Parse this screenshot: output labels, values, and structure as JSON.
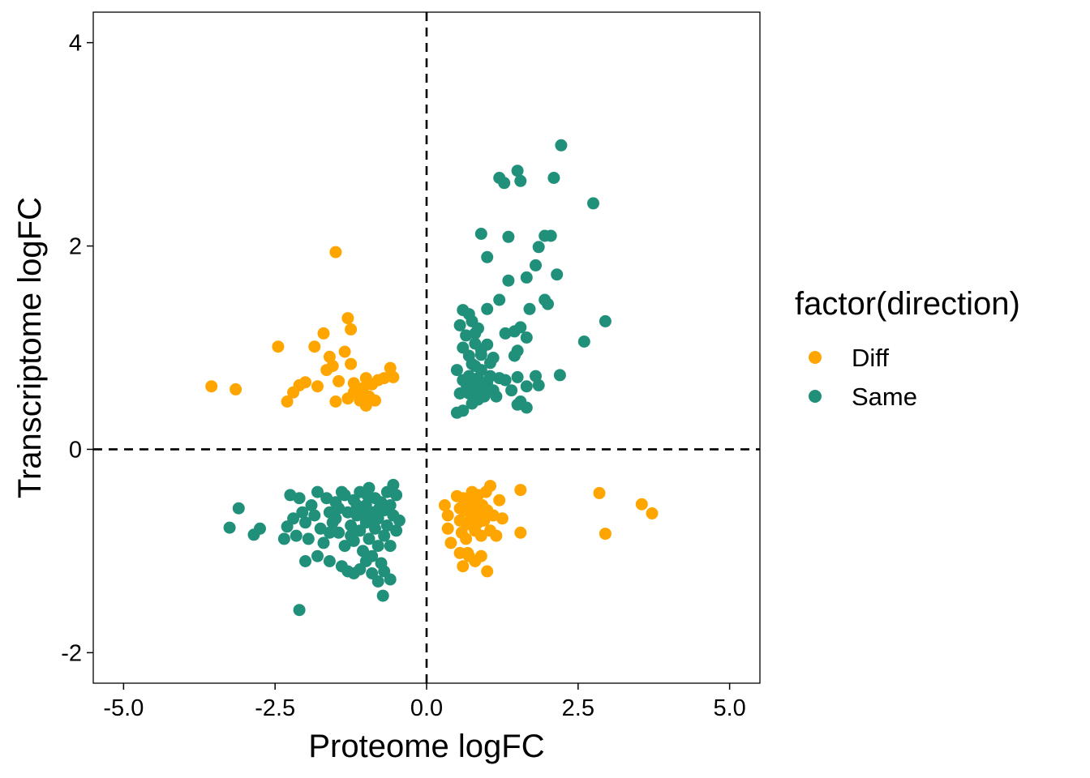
{
  "chart_data": {
    "type": "scatter",
    "title": "",
    "xlabel": "Proteome logFC",
    "ylabel": "Transcriptome logFC",
    "xlim": [
      -5.5,
      5.5
    ],
    "ylim": [
      -2.3,
      4.3
    ],
    "x_ticks": [
      {
        "value": -5.0,
        "label": "-5.0"
      },
      {
        "value": -2.5,
        "label": "-2.5"
      },
      {
        "value": 0.0,
        "label": "0.0"
      },
      {
        "value": 2.5,
        "label": "2.5"
      },
      {
        "value": 5.0,
        "label": "5.0"
      }
    ],
    "y_ticks": [
      {
        "value": -2,
        "label": "-2"
      },
      {
        "value": 0,
        "label": "0"
      },
      {
        "value": 2,
        "label": "2"
      },
      {
        "value": 4,
        "label": "4"
      }
    ],
    "reference_lines": {
      "x": 0,
      "y": 0,
      "style": "dashed"
    },
    "grid": false,
    "legend": {
      "title": "factor(direction)",
      "position": "right"
    },
    "series": [
      {
        "name": "Diff",
        "color": "#FFA500",
        "points": [
          [
            -1.5,
            1.94
          ],
          [
            -3.55,
            0.62
          ],
          [
            -3.15,
            0.59
          ],
          [
            -2.45,
            1.01
          ],
          [
            -2.3,
            0.47
          ],
          [
            -2.2,
            0.56
          ],
          [
            -2.1,
            0.63
          ],
          [
            -2.0,
            0.66
          ],
          [
            -1.85,
            1.01
          ],
          [
            -1.8,
            0.62
          ],
          [
            -1.7,
            1.14
          ],
          [
            -1.65,
            0.78
          ],
          [
            -1.6,
            0.91
          ],
          [
            -1.55,
            0.82
          ],
          [
            -1.5,
            0.47
          ],
          [
            -1.45,
            0.67
          ],
          [
            -1.35,
            0.96
          ],
          [
            -1.3,
            1.29
          ],
          [
            -1.25,
            1.18
          ],
          [
            -1.25,
            0.84
          ],
          [
            -1.2,
            0.65
          ],
          [
            -1.3,
            0.5
          ],
          [
            -1.15,
            0.58
          ],
          [
            -1.1,
            0.48
          ],
          [
            -1.05,
            0.6
          ],
          [
            -1.0,
            0.43
          ],
          [
            -1.0,
            0.7
          ],
          [
            -0.95,
            0.52
          ],
          [
            -0.9,
            0.64
          ],
          [
            -0.85,
            0.48
          ],
          [
            -0.8,
            0.68
          ],
          [
            -0.7,
            0.7
          ],
          [
            -0.6,
            0.8
          ],
          [
            -0.55,
            0.71
          ],
          [
            -1.2,
            0.56
          ],
          [
            -1.05,
            0.53
          ],
          [
            0.3,
            -0.55
          ],
          [
            0.35,
            -0.65
          ],
          [
            0.35,
            -0.78
          ],
          [
            0.4,
            -0.92
          ],
          [
            0.5,
            -0.46
          ],
          [
            0.55,
            -0.58
          ],
          [
            0.55,
            -0.7
          ],
          [
            0.58,
            -0.82
          ],
          [
            0.6,
            -0.48
          ],
          [
            0.62,
            -0.6
          ],
          [
            0.65,
            -0.72
          ],
          [
            0.65,
            -0.88
          ],
          [
            0.68,
            -1.02
          ],
          [
            0.7,
            -0.5
          ],
          [
            0.72,
            -0.62
          ],
          [
            0.72,
            -0.74
          ],
          [
            0.75,
            -0.55
          ],
          [
            0.75,
            -0.42
          ],
          [
            0.78,
            -0.68
          ],
          [
            0.8,
            -0.8
          ],
          [
            0.8,
            -0.6
          ],
          [
            0.82,
            -0.5
          ],
          [
            0.85,
            -0.72
          ],
          [
            0.85,
            -0.45
          ],
          [
            0.88,
            -0.62
          ],
          [
            0.9,
            -0.85
          ],
          [
            0.92,
            -0.55
          ],
          [
            0.95,
            -0.7
          ],
          [
            0.98,
            -0.42
          ],
          [
            1.0,
            -0.6
          ],
          [
            1.05,
            -0.36
          ],
          [
            1.05,
            -0.8
          ],
          [
            1.1,
            -0.65
          ],
          [
            0.6,
            -1.15
          ],
          [
            0.7,
            -1.05
          ],
          [
            0.8,
            -1.1
          ],
          [
            0.9,
            -1.05
          ],
          [
            1.0,
            -1.2
          ],
          [
            0.55,
            -1.02
          ],
          [
            1.15,
            -0.85
          ],
          [
            1.2,
            -0.5
          ],
          [
            1.25,
            -0.68
          ],
          [
            1.55,
            -0.4
          ],
          [
            1.55,
            -0.82
          ],
          [
            2.85,
            -0.43
          ],
          [
            2.95,
            -0.83
          ],
          [
            3.55,
            -0.54
          ],
          [
            3.72,
            -0.63
          ]
        ]
      },
      {
        "name": "Same",
        "color": "#21907A",
        "points": [
          [
            2.22,
            2.99
          ],
          [
            1.2,
            2.67
          ],
          [
            1.28,
            2.62
          ],
          [
            1.5,
            2.74
          ],
          [
            1.55,
            2.64
          ],
          [
            2.1,
            2.67
          ],
          [
            2.75,
            2.42
          ],
          [
            0.9,
            2.12
          ],
          [
            1.35,
            2.09
          ],
          [
            1.95,
            2.1
          ],
          [
            2.05,
            2.1
          ],
          [
            1.85,
            1.99
          ],
          [
            1.0,
            1.89
          ],
          [
            1.8,
            1.81
          ],
          [
            1.35,
            1.66
          ],
          [
            1.65,
            1.69
          ],
          [
            2.15,
            1.72
          ],
          [
            1.2,
            1.47
          ],
          [
            1.95,
            1.47
          ],
          [
            2.0,
            1.43
          ],
          [
            0.6,
            1.37
          ],
          [
            0.7,
            1.33
          ],
          [
            1.0,
            1.38
          ],
          [
            1.7,
            1.38
          ],
          [
            2.95,
            1.26
          ],
          [
            0.55,
            1.22
          ],
          [
            0.65,
            1.12
          ],
          [
            0.75,
            1.26
          ],
          [
            0.85,
            1.19
          ],
          [
            1.3,
            1.14
          ],
          [
            1.45,
            1.16
          ],
          [
            1.55,
            1.2
          ],
          [
            1.65,
            1.1
          ],
          [
            0.6,
            1.0
          ],
          [
            0.7,
            0.92
          ],
          [
            0.8,
            1.04
          ],
          [
            0.9,
            0.98
          ],
          [
            1.0,
            1.03
          ],
          [
            1.1,
            0.9
          ],
          [
            1.5,
            0.97
          ],
          [
            2.6,
            1.06
          ],
          [
            0.5,
            0.78
          ],
          [
            0.6,
            0.68
          ],
          [
            0.65,
            0.58
          ],
          [
            0.7,
            0.72
          ],
          [
            0.75,
            0.84
          ],
          [
            0.8,
            0.62
          ],
          [
            0.85,
            0.7
          ],
          [
            0.9,
            0.78
          ],
          [
            0.95,
            0.6
          ],
          [
            1.0,
            0.66
          ],
          [
            1.05,
            0.72
          ],
          [
            1.1,
            0.58
          ],
          [
            1.15,
            0.52
          ],
          [
            1.2,
            0.7
          ],
          [
            1.3,
            0.68
          ],
          [
            1.4,
            0.58
          ],
          [
            1.5,
            0.71
          ],
          [
            1.55,
            0.47
          ],
          [
            1.65,
            0.62
          ],
          [
            1.8,
            0.72
          ],
          [
            1.85,
            0.63
          ],
          [
            2.2,
            0.73
          ],
          [
            0.5,
            0.36
          ],
          [
            0.6,
            0.38
          ],
          [
            0.75,
            0.45
          ],
          [
            0.85,
            0.49
          ],
          [
            0.95,
            0.52
          ],
          [
            1.0,
            0.58
          ],
          [
            1.5,
            0.44
          ],
          [
            1.65,
            0.41
          ],
          [
            0.55,
            0.55
          ],
          [
            0.65,
            0.65
          ],
          [
            0.8,
            0.82
          ],
          [
            0.9,
            0.93
          ],
          [
            1.05,
            0.85
          ],
          [
            0.7,
            0.55
          ],
          [
            0.85,
            0.56
          ],
          [
            1.45,
            0.92
          ],
          [
            0.8,
            1.14
          ],
          [
            -3.25,
            -0.77
          ],
          [
            -3.1,
            -0.58
          ],
          [
            -2.85,
            -0.84
          ],
          [
            -2.75,
            -0.78
          ],
          [
            -2.3,
            -0.76
          ],
          [
            -2.25,
            -0.45
          ],
          [
            -2.2,
            -0.68
          ],
          [
            -2.15,
            -0.85
          ],
          [
            -2.1,
            -0.48
          ],
          [
            -2.05,
            -0.62
          ],
          [
            -2.0,
            -0.72
          ],
          [
            -1.95,
            -0.88
          ],
          [
            -1.9,
            -0.55
          ],
          [
            -1.85,
            -0.65
          ],
          [
            -1.8,
            -0.42
          ],
          [
            -1.75,
            -0.78
          ],
          [
            -1.7,
            -0.92
          ],
          [
            -1.65,
            -0.48
          ],
          [
            -1.6,
            -0.62
          ],
          [
            -1.55,
            -0.72
          ],
          [
            -1.5,
            -0.52
          ],
          [
            -1.45,
            -0.82
          ],
          [
            -1.4,
            -0.42
          ],
          [
            -1.35,
            -0.95
          ],
          [
            -1.3,
            -0.62
          ],
          [
            -1.25,
            -0.75
          ],
          [
            -1.2,
            -0.5
          ],
          [
            -1.2,
            -0.9
          ],
          [
            -1.15,
            -0.65
          ],
          [
            -1.1,
            -0.42
          ],
          [
            -1.1,
            -0.8
          ],
          [
            -1.05,
            -1.0
          ],
          [
            -1.0,
            -0.55
          ],
          [
            -1.0,
            -0.72
          ],
          [
            -0.95,
            -0.38
          ],
          [
            -0.95,
            -0.88
          ],
          [
            -0.9,
            -0.62
          ],
          [
            -0.9,
            -1.05
          ],
          [
            -0.85,
            -0.48
          ],
          [
            -0.85,
            -0.78
          ],
          [
            -0.8,
            -0.68
          ],
          [
            -0.8,
            -0.95
          ],
          [
            -0.75,
            -0.52
          ],
          [
            -0.75,
            -1.12
          ],
          [
            -0.7,
            -0.85
          ],
          [
            -0.7,
            -0.6
          ],
          [
            -0.65,
            -0.42
          ],
          [
            -0.65,
            -0.75
          ],
          [
            -0.6,
            -0.55
          ],
          [
            -0.6,
            -0.95
          ],
          [
            -0.55,
            -0.65
          ],
          [
            -0.55,
            -0.35
          ],
          [
            -0.5,
            -0.8
          ],
          [
            -0.5,
            -0.45
          ],
          [
            -0.45,
            -0.7
          ],
          [
            -2.0,
            -1.1
          ],
          [
            -1.8,
            -1.05
          ],
          [
            -1.6,
            -1.1
          ],
          [
            -1.4,
            -1.15
          ],
          [
            -1.3,
            -1.2
          ],
          [
            -1.2,
            -1.22
          ],
          [
            -1.1,
            -1.18
          ],
          [
            -1.0,
            -1.1
          ],
          [
            -0.9,
            -1.22
          ],
          [
            -0.8,
            -1.3
          ],
          [
            -0.7,
            -1.2
          ],
          [
            -0.6,
            -1.28
          ],
          [
            -0.72,
            -1.44
          ],
          [
            -2.1,
            -1.58
          ],
          [
            -1.5,
            -0.68
          ],
          [
            -1.35,
            -0.45
          ],
          [
            -1.25,
            -0.85
          ],
          [
            -1.15,
            -0.55
          ],
          [
            -1.05,
            -0.62
          ],
          [
            -0.98,
            -0.45
          ],
          [
            -0.88,
            -0.7
          ],
          [
            -0.78,
            -0.58
          ],
          [
            -1.6,
            -0.82
          ],
          [
            -1.45,
            -0.58
          ],
          [
            -2.35,
            -0.88
          ]
        ]
      }
    ]
  }
}
